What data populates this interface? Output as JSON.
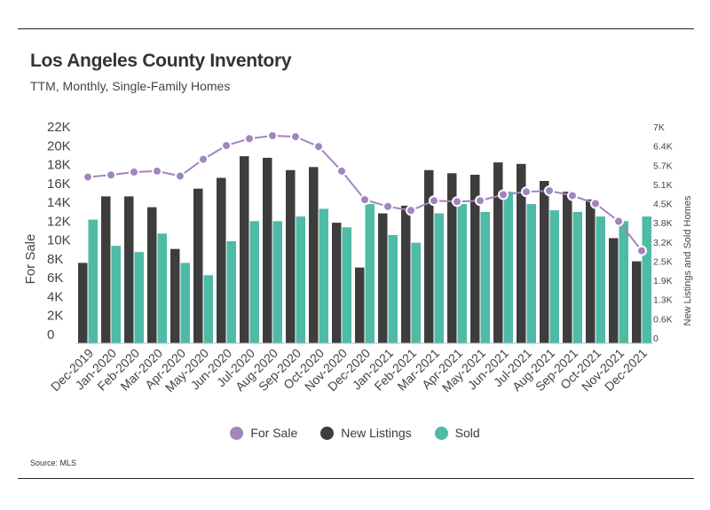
{
  "header": {
    "title": "Los Angeles County Inventory",
    "subtitle": "TTM, Monthly, Single-Family Homes"
  },
  "footer": {
    "source": "Source:  MLS"
  },
  "colors": {
    "for_sale": "#a285bd",
    "new_listings": "#3d3d3d",
    "sold": "#4dbba6"
  },
  "chart_data": {
    "type": "bar",
    "categories": [
      "Dec-2019",
      "Jan-2020",
      "Feb-2020",
      "Mar-2020",
      "Apr-2020",
      "May-2020",
      "Jun-2020",
      "Jul-2020",
      "Aug-2020",
      "Sep-2020",
      "Oct-2020",
      "Nov-2020",
      "Dec-2020",
      "Jan-2021",
      "Feb-2021",
      "Mar-2021",
      "Apr-2021",
      "May-2021",
      "Jun-2021",
      "Jul-2021",
      "Aug-2021",
      "Sep-2021",
      "Oct-2021",
      "Nov-2021",
      "Dec-2021"
    ],
    "ylabel": "For Sale",
    "y2label": "New Listings and Sold Homes",
    "ylim": [
      0,
      22000
    ],
    "y2lim": [
      0,
      7000
    ],
    "yticks": [
      "0",
      "2K",
      "4K",
      "6K",
      "8K",
      "10K",
      "12K",
      "14K",
      "16K",
      "18K",
      "20K",
      "22K"
    ],
    "y2ticks": [
      "0",
      "0.6K",
      "1.3K",
      "1.9K",
      "2.5K",
      "3.2K",
      "3.8K",
      "4.5K",
      "5.1K",
      "5.7K",
      "6.4K",
      "7K"
    ],
    "series": [
      {
        "name": "For Sale",
        "type": "line",
        "axis": "left",
        "values": [
          16900,
          17100,
          17400,
          17500,
          17000,
          18700,
          20100,
          20800,
          21100,
          21000,
          20000,
          17500,
          14600,
          13900,
          13500,
          14500,
          14400,
          14500,
          15100,
          15400,
          15500,
          15000,
          14200,
          12400,
          9400
        ]
      },
      {
        "name": "New Listings",
        "type": "bar",
        "axis": "right",
        "values": [
          2600,
          4750,
          4750,
          4400,
          3050,
          5000,
          5350,
          6050,
          6000,
          5600,
          5700,
          3900,
          2450,
          4200,
          4450,
          5600,
          5500,
          5450,
          5850,
          5800,
          5250,
          4900,
          4650,
          3400,
          2650
        ]
      },
      {
        "name": "Sold",
        "type": "bar",
        "axis": "right",
        "values": [
          4000,
          3150,
          2950,
          3550,
          2600,
          2200,
          3300,
          3950,
          3950,
          4100,
          4350,
          3750,
          4500,
          3500,
          3250,
          4200,
          4500,
          4250,
          4900,
          4500,
          4300,
          4250,
          4100,
          3950,
          4100
        ]
      }
    ],
    "legend": "bottom-center",
    "grid": false
  }
}
